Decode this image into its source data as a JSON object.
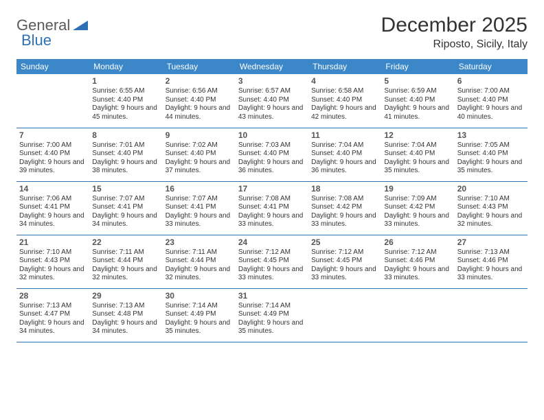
{
  "brand": {
    "word1": "General",
    "word2": "Blue"
  },
  "colors": {
    "header_bg": "#3b87c8",
    "header_text": "#ffffff",
    "rule": "#2f6fb4",
    "logo_gray": "#5a5a5a",
    "logo_blue": "#2f6fb4",
    "page_bg": "#ffffff",
    "body_text": "#333333"
  },
  "title": {
    "month": "December 2025",
    "location": "Riposto, Sicily, Italy"
  },
  "weekdays": [
    "Sunday",
    "Monday",
    "Tuesday",
    "Wednesday",
    "Thursday",
    "Friday",
    "Saturday"
  ],
  "grid": [
    [
      null,
      {
        "n": "1",
        "sr": "6:55 AM",
        "ss": "4:40 PM",
        "dl": "9 hours and 45 minutes."
      },
      {
        "n": "2",
        "sr": "6:56 AM",
        "ss": "4:40 PM",
        "dl": "9 hours and 44 minutes."
      },
      {
        "n": "3",
        "sr": "6:57 AM",
        "ss": "4:40 PM",
        "dl": "9 hours and 43 minutes."
      },
      {
        "n": "4",
        "sr": "6:58 AM",
        "ss": "4:40 PM",
        "dl": "9 hours and 42 minutes."
      },
      {
        "n": "5",
        "sr": "6:59 AM",
        "ss": "4:40 PM",
        "dl": "9 hours and 41 minutes."
      },
      {
        "n": "6",
        "sr": "7:00 AM",
        "ss": "4:40 PM",
        "dl": "9 hours and 40 minutes."
      }
    ],
    [
      {
        "n": "7",
        "sr": "7:00 AM",
        "ss": "4:40 PM",
        "dl": "9 hours and 39 minutes."
      },
      {
        "n": "8",
        "sr": "7:01 AM",
        "ss": "4:40 PM",
        "dl": "9 hours and 38 minutes."
      },
      {
        "n": "9",
        "sr": "7:02 AM",
        "ss": "4:40 PM",
        "dl": "9 hours and 37 minutes."
      },
      {
        "n": "10",
        "sr": "7:03 AM",
        "ss": "4:40 PM",
        "dl": "9 hours and 36 minutes."
      },
      {
        "n": "11",
        "sr": "7:04 AM",
        "ss": "4:40 PM",
        "dl": "9 hours and 36 minutes."
      },
      {
        "n": "12",
        "sr": "7:04 AM",
        "ss": "4:40 PM",
        "dl": "9 hours and 35 minutes."
      },
      {
        "n": "13",
        "sr": "7:05 AM",
        "ss": "4:40 PM",
        "dl": "9 hours and 35 minutes."
      }
    ],
    [
      {
        "n": "14",
        "sr": "7:06 AM",
        "ss": "4:41 PM",
        "dl": "9 hours and 34 minutes."
      },
      {
        "n": "15",
        "sr": "7:07 AM",
        "ss": "4:41 PM",
        "dl": "9 hours and 34 minutes."
      },
      {
        "n": "16",
        "sr": "7:07 AM",
        "ss": "4:41 PM",
        "dl": "9 hours and 33 minutes."
      },
      {
        "n": "17",
        "sr": "7:08 AM",
        "ss": "4:41 PM",
        "dl": "9 hours and 33 minutes."
      },
      {
        "n": "18",
        "sr": "7:08 AM",
        "ss": "4:42 PM",
        "dl": "9 hours and 33 minutes."
      },
      {
        "n": "19",
        "sr": "7:09 AM",
        "ss": "4:42 PM",
        "dl": "9 hours and 33 minutes."
      },
      {
        "n": "20",
        "sr": "7:10 AM",
        "ss": "4:43 PM",
        "dl": "9 hours and 32 minutes."
      }
    ],
    [
      {
        "n": "21",
        "sr": "7:10 AM",
        "ss": "4:43 PM",
        "dl": "9 hours and 32 minutes."
      },
      {
        "n": "22",
        "sr": "7:11 AM",
        "ss": "4:44 PM",
        "dl": "9 hours and 32 minutes."
      },
      {
        "n": "23",
        "sr": "7:11 AM",
        "ss": "4:44 PM",
        "dl": "9 hours and 32 minutes."
      },
      {
        "n": "24",
        "sr": "7:12 AM",
        "ss": "4:45 PM",
        "dl": "9 hours and 33 minutes."
      },
      {
        "n": "25",
        "sr": "7:12 AM",
        "ss": "4:45 PM",
        "dl": "9 hours and 33 minutes."
      },
      {
        "n": "26",
        "sr": "7:12 AM",
        "ss": "4:46 PM",
        "dl": "9 hours and 33 minutes."
      },
      {
        "n": "27",
        "sr": "7:13 AM",
        "ss": "4:46 PM",
        "dl": "9 hours and 33 minutes."
      }
    ],
    [
      {
        "n": "28",
        "sr": "7:13 AM",
        "ss": "4:47 PM",
        "dl": "9 hours and 34 minutes."
      },
      {
        "n": "29",
        "sr": "7:13 AM",
        "ss": "4:48 PM",
        "dl": "9 hours and 34 minutes."
      },
      {
        "n": "30",
        "sr": "7:14 AM",
        "ss": "4:49 PM",
        "dl": "9 hours and 35 minutes."
      },
      {
        "n": "31",
        "sr": "7:14 AM",
        "ss": "4:49 PM",
        "dl": "9 hours and 35 minutes."
      },
      null,
      null,
      null
    ]
  ],
  "labels": {
    "sunrise": "Sunrise:",
    "sunset": "Sunset:",
    "daylight": "Daylight:"
  }
}
